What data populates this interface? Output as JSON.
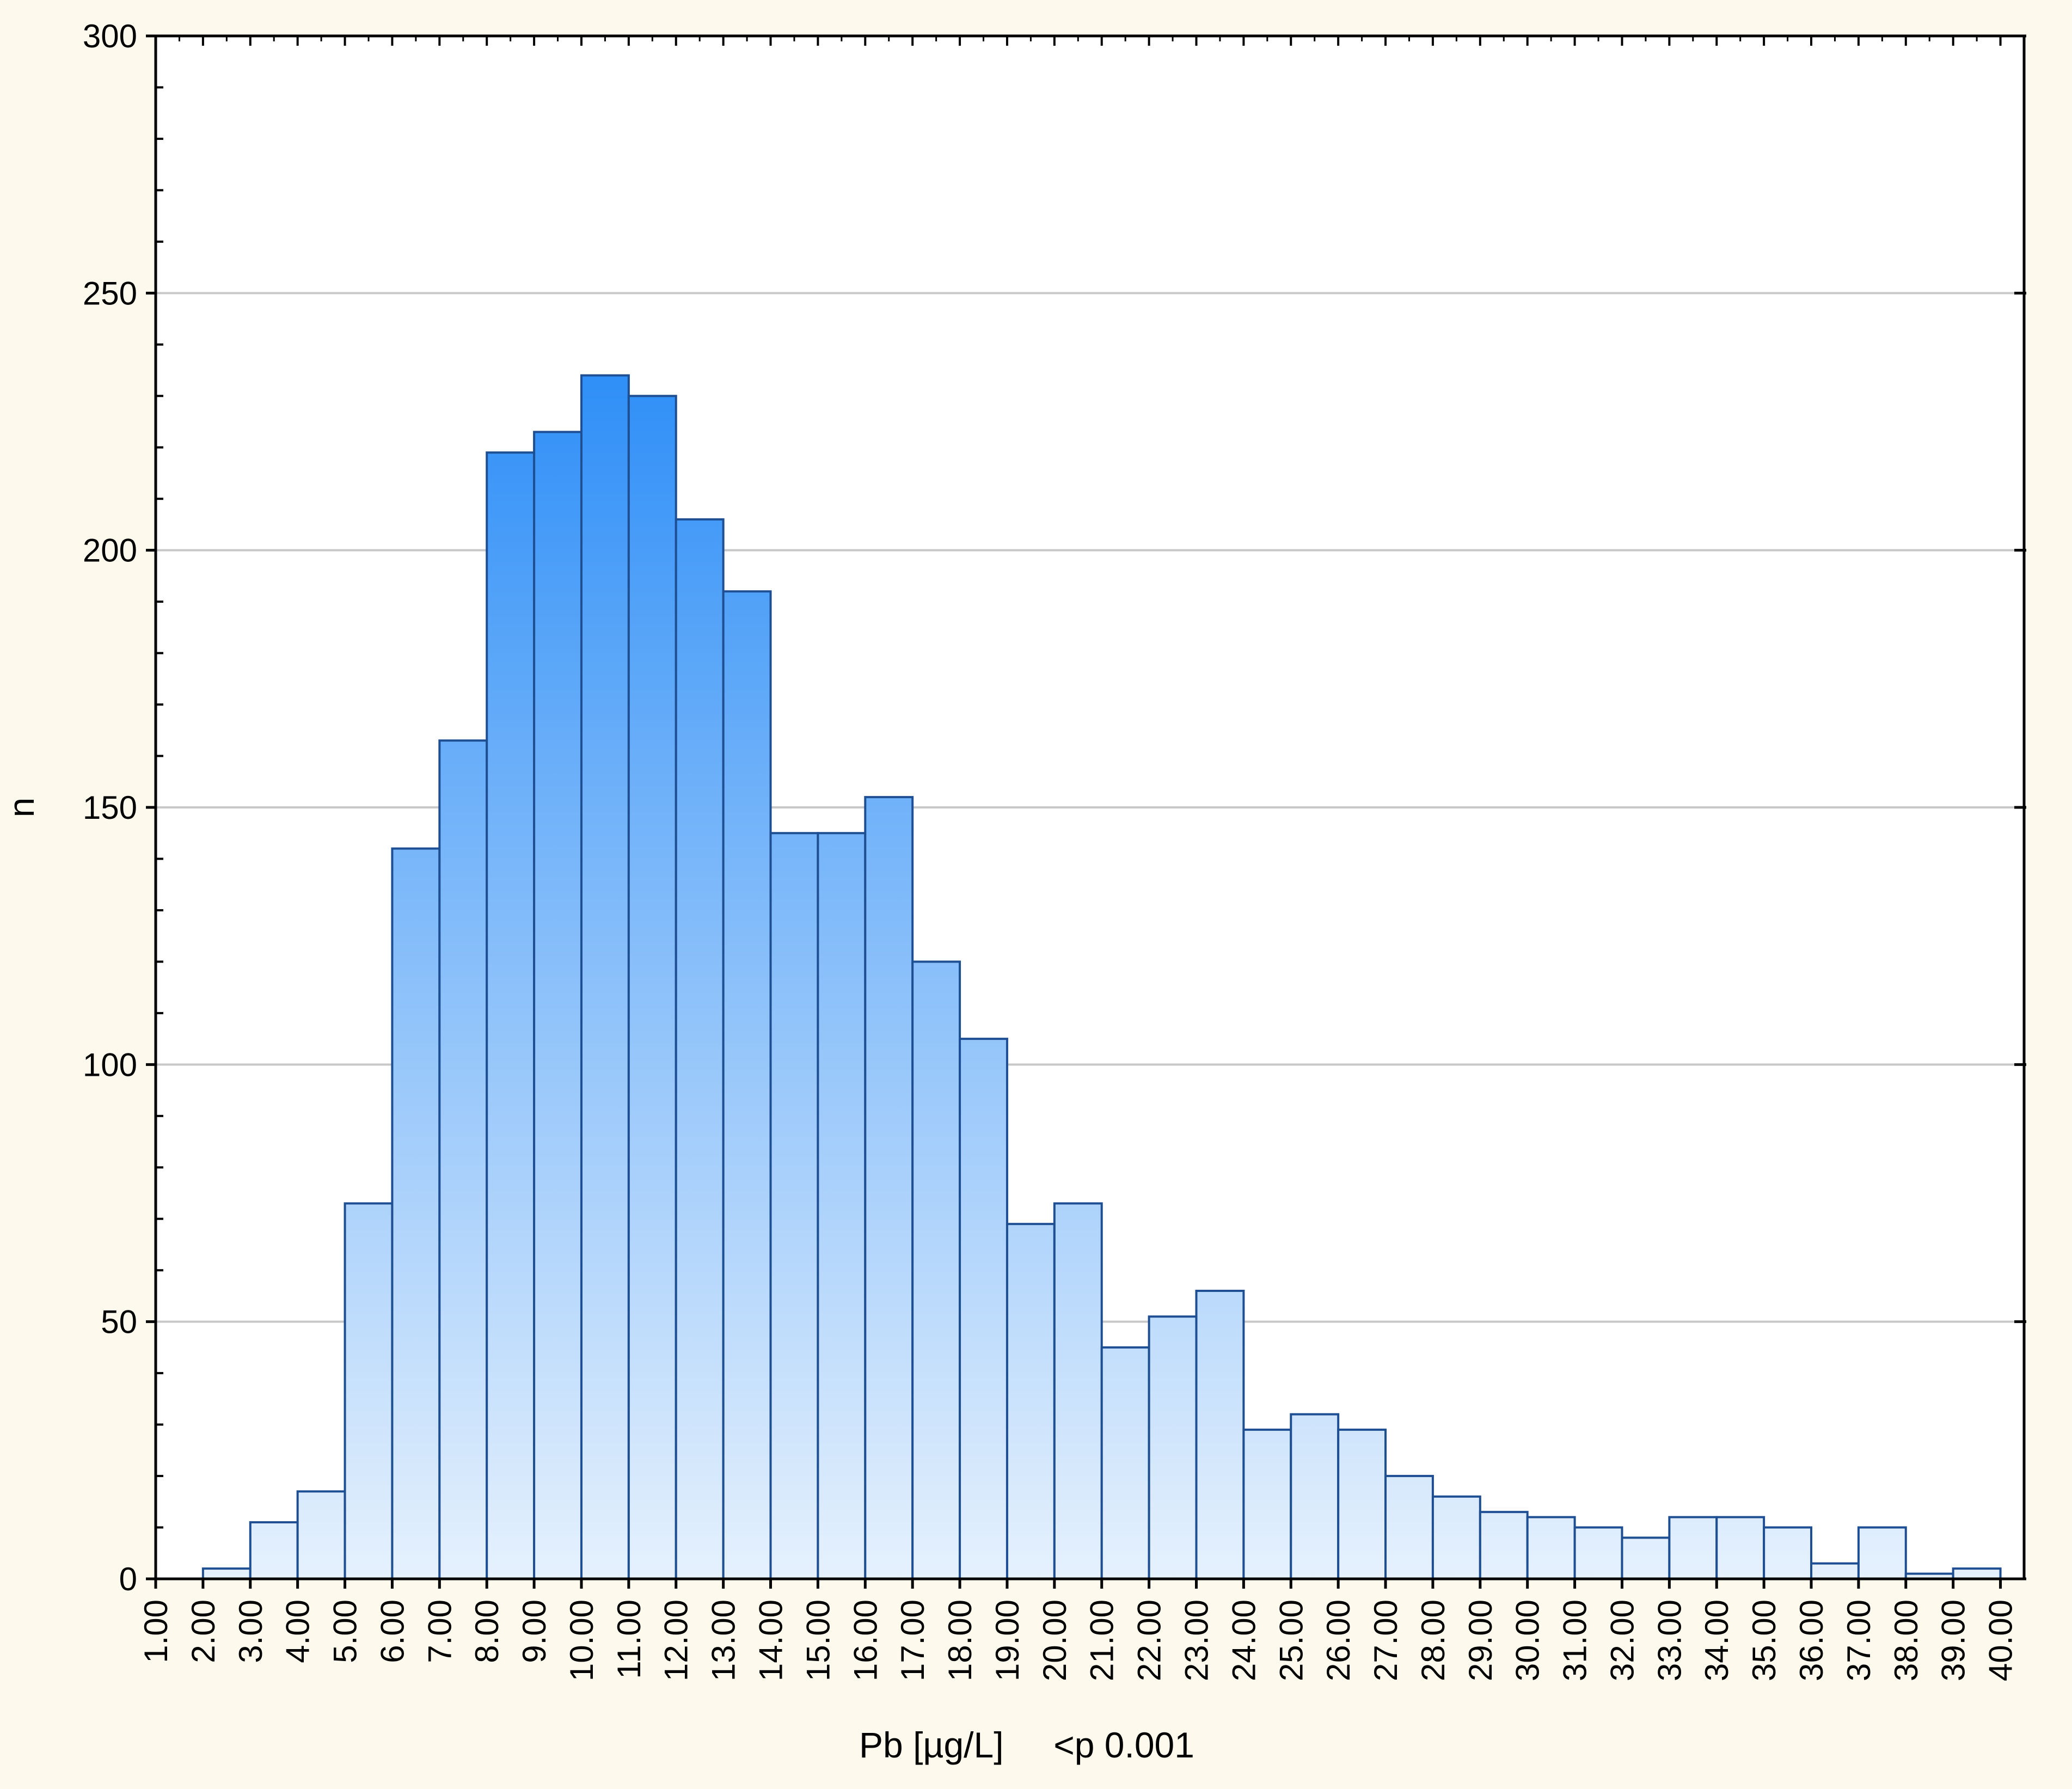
{
  "chart_data": {
    "type": "bar",
    "title": "",
    "xlabel": "Pb [µg/L]     <p 0.001",
    "ylabel": "n",
    "ylim": [
      0,
      300
    ],
    "yticks": [
      "0",
      "50",
      "100",
      "150",
      "200",
      "250",
      "300"
    ],
    "xticks": [
      "1.00",
      "2.00",
      "3.00",
      "4.00",
      "5.00",
      "6.00",
      "7.00",
      "8.00",
      "9.00",
      "10.00",
      "11.00",
      "12.00",
      "13.00",
      "14.00",
      "15.00",
      "16.00",
      "17.00",
      "18.00",
      "19.00",
      "20.00",
      "21.00",
      "22.00",
      "23.00",
      "24.00",
      "25.00",
      "26.00",
      "27.00",
      "28.00",
      "29.00",
      "30.00",
      "31.00",
      "32.00",
      "33.00",
      "34.00",
      "35.00",
      "36.00",
      "37.00",
      "38.00",
      "39.00",
      "40.00"
    ],
    "xlim": [
      1,
      40.5
    ],
    "grid": "horizontal",
    "bins": [
      {
        "start": 2,
        "end": 3,
        "value": 2
      },
      {
        "start": 3,
        "end": 4,
        "value": 11
      },
      {
        "start": 4,
        "end": 5,
        "value": 17
      },
      {
        "start": 5,
        "end": 6,
        "value": 73
      },
      {
        "start": 6,
        "end": 7,
        "value": 142
      },
      {
        "start": 7,
        "end": 8,
        "value": 163
      },
      {
        "start": 8,
        "end": 9,
        "value": 219
      },
      {
        "start": 9,
        "end": 10,
        "value": 223
      },
      {
        "start": 10,
        "end": 11,
        "value": 234
      },
      {
        "start": 11,
        "end": 12,
        "value": 230
      },
      {
        "start": 12,
        "end": 13,
        "value": 206
      },
      {
        "start": 13,
        "end": 14,
        "value": 192
      },
      {
        "start": 14,
        "end": 15,
        "value": 145
      },
      {
        "start": 15,
        "end": 16,
        "value": 145
      },
      {
        "start": 16,
        "end": 17,
        "value": 152
      },
      {
        "start": 17,
        "end": 18,
        "value": 120
      },
      {
        "start": 18,
        "end": 19,
        "value": 105
      },
      {
        "start": 19,
        "end": 20,
        "value": 69
      },
      {
        "start": 20,
        "end": 21,
        "value": 73
      },
      {
        "start": 21,
        "end": 22,
        "value": 45
      },
      {
        "start": 22,
        "end": 23,
        "value": 51
      },
      {
        "start": 23,
        "end": 24,
        "value": 56
      },
      {
        "start": 24,
        "end": 25,
        "value": 29
      },
      {
        "start": 25,
        "end": 26,
        "value": 32
      },
      {
        "start": 26,
        "end": 27,
        "value": 29
      },
      {
        "start": 27,
        "end": 28,
        "value": 20
      },
      {
        "start": 28,
        "end": 29,
        "value": 16
      },
      {
        "start": 29,
        "end": 30,
        "value": 13
      },
      {
        "start": 30,
        "end": 31,
        "value": 12
      },
      {
        "start": 31,
        "end": 32,
        "value": 10
      },
      {
        "start": 32,
        "end": 33,
        "value": 8
      },
      {
        "start": 33,
        "end": 34,
        "value": 12
      },
      {
        "start": 34,
        "end": 35,
        "value": 12
      },
      {
        "start": 35,
        "end": 36,
        "value": 10
      },
      {
        "start": 36,
        "end": 37,
        "value": 3
      },
      {
        "start": 37,
        "end": 38,
        "value": 10
      },
      {
        "start": 38,
        "end": 39,
        "value": 1
      },
      {
        "start": 39,
        "end": 40,
        "value": 2
      }
    ],
    "colors": {
      "background": "#fdf9ec",
      "plot_background": "#ffffff",
      "bar_top": "#2f8ff7",
      "bar_bottom": "#e6f1fd",
      "bar_outline": "#1f4f93",
      "grid": "#c8c8c8",
      "axis": "#000000"
    }
  }
}
